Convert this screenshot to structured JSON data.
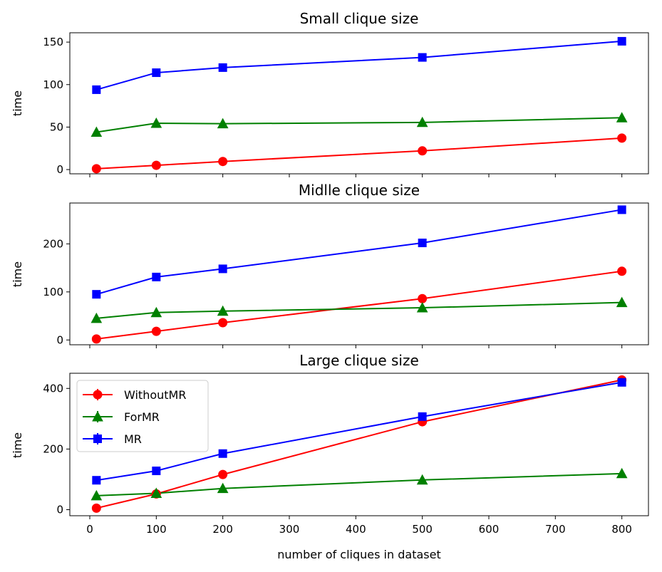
{
  "figure": {
    "xlabel": "number of cliques in dataset"
  },
  "colors": {
    "WithoutMR": "#ff0000",
    "ForMR": "#008000",
    "MR": "#0000ff"
  },
  "chart_data": [
    {
      "type": "line",
      "title": "Small clique size",
      "xlabel": "",
      "ylabel": "time",
      "xlim": [
        -30,
        840
      ],
      "ylim": [
        -5,
        161
      ],
      "x": [
        10,
        100,
        200,
        500,
        800
      ],
      "xticks": [
        0,
        100,
        200,
        300,
        400,
        500,
        600,
        700,
        800
      ],
      "xtick_labels_shown": false,
      "yticks": [
        0,
        50,
        100,
        150
      ],
      "grid": false,
      "legend": null,
      "series": [
        {
          "name": "WithoutMR",
          "marker": "circle",
          "color": "#ff0000",
          "values": [
            1,
            5,
            9.5,
            22,
            37
          ]
        },
        {
          "name": "ForMR",
          "marker": "triangle",
          "color": "#008000",
          "values": [
            44,
            54.5,
            54,
            55.5,
            61
          ]
        },
        {
          "name": "MR",
          "marker": "square",
          "color": "#0000ff",
          "values": [
            94,
            114,
            120,
            132,
            151
          ]
        }
      ]
    },
    {
      "type": "line",
      "title": "Midlle clique size",
      "xlabel": "",
      "ylabel": "time",
      "xlim": [
        -30,
        840
      ],
      "ylim": [
        -10,
        285
      ],
      "x": [
        10,
        100,
        200,
        500,
        800
      ],
      "xticks": [
        0,
        100,
        200,
        300,
        400,
        500,
        600,
        700,
        800
      ],
      "xtick_labels_shown": false,
      "yticks": [
        0,
        100,
        200
      ],
      "grid": false,
      "legend": null,
      "series": [
        {
          "name": "WithoutMR",
          "marker": "circle",
          "color": "#ff0000",
          "values": [
            2,
            18,
            36,
            86,
            143
          ]
        },
        {
          "name": "ForMR",
          "marker": "triangle",
          "color": "#008000",
          "values": [
            45,
            57,
            60,
            67,
            78
          ]
        },
        {
          "name": "MR",
          "marker": "square",
          "color": "#0000ff",
          "values": [
            95,
            131,
            148,
            202,
            271
          ]
        }
      ]
    },
    {
      "type": "line",
      "title": "Large clique size",
      "xlabel": "number of cliques in dataset",
      "ylabel": "time",
      "xlim": [
        -30,
        840
      ],
      "ylim": [
        -20,
        450
      ],
      "x": [
        10,
        100,
        200,
        500,
        800
      ],
      "xticks": [
        0,
        100,
        200,
        300,
        400,
        500,
        600,
        700,
        800
      ],
      "xtick_labels_shown": true,
      "yticks": [
        0,
        200,
        400
      ],
      "grid": false,
      "legend": "upper-left",
      "series": [
        {
          "name": "WithoutMR",
          "marker": "circle",
          "color": "#ff0000",
          "values": [
            5,
            52,
            116,
            290,
            428
          ]
        },
        {
          "name": "ForMR",
          "marker": "triangle",
          "color": "#008000",
          "values": [
            46,
            54,
            70,
            98,
            119
          ]
        },
        {
          "name": "MR",
          "marker": "square",
          "color": "#0000ff",
          "values": [
            97,
            128,
            185,
            307,
            420
          ]
        }
      ]
    }
  ]
}
